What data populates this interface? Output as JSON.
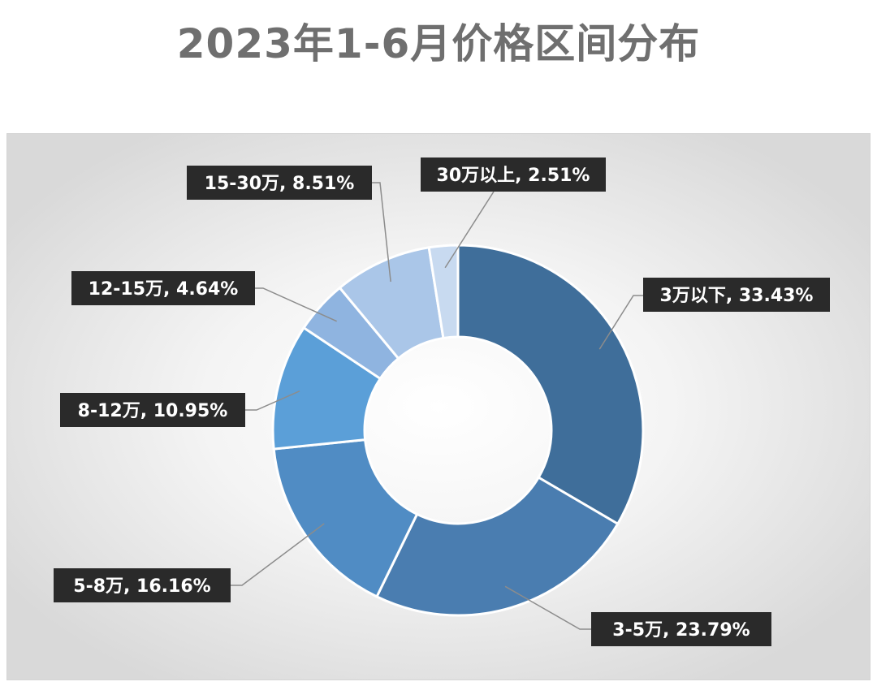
{
  "chart_data": {
    "type": "pie",
    "style": "donut",
    "title": "2023年1-6月价格区间分布",
    "slices": [
      {
        "label": "3万以下",
        "value": 33.43,
        "display": "3万以下, 33.43%",
        "color": "#3f6e9a"
      },
      {
        "label": "3-5万",
        "value": 23.79,
        "display": "3-5万, 23.79%",
        "color": "#4a7db0"
      },
      {
        "label": "5-8万",
        "value": 16.16,
        "display": "5-8万, 16.16%",
        "color": "#508cc4"
      },
      {
        "label": "8-12万",
        "value": 10.95,
        "display": "8-12万, 10.95%",
        "color": "#5b9fd8"
      },
      {
        "label": "12-15万",
        "value": 4.64,
        "display": "12-15万, 4.64%",
        "color": "#8fb4e0"
      },
      {
        "label": "15-30万",
        "value": 8.51,
        "display": "15-30万, 8.51%",
        "color": "#aac6e8"
      },
      {
        "label": "30万以上",
        "value": 2.51,
        "display": "30万以上, 2.51%",
        "color": "#c8daf0"
      }
    ],
    "legend": "none",
    "data_labels": "callout"
  }
}
